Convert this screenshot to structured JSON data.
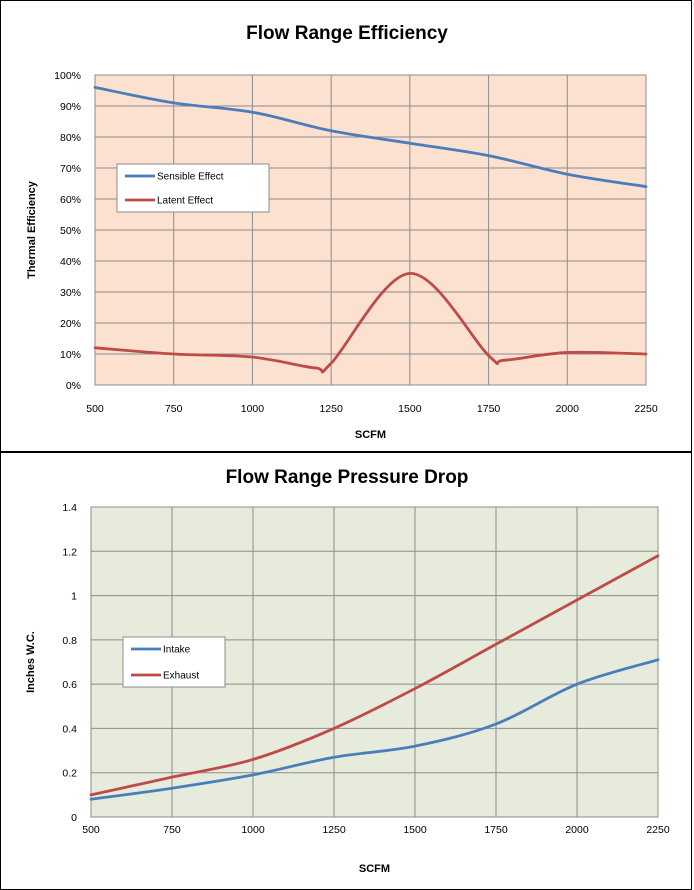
{
  "chart_data": [
    {
      "type": "line",
      "title": "Flow Range Efficiency",
      "xlabel": "SCFM",
      "ylabel": "Thermal Efficiency",
      "x_ticks": [
        "500",
        "750",
        "1000",
        "1250",
        "1500",
        "1750",
        "2000",
        "2250"
      ],
      "y_ticks": [
        "0%",
        "10%",
        "20%",
        "30%",
        "40%",
        "50%",
        "60%",
        "70%",
        "80%",
        "90%",
        "100%"
      ],
      "xlim": [
        500,
        2250
      ],
      "ylim": [
        0,
        100
      ],
      "grid": true,
      "legend_position": "center-left",
      "plot_bg": "#fce1d0",
      "series": [
        {
          "name": "Sensible Effect",
          "color": "#4a7ebb",
          "x": [
            500,
            750,
            1000,
            1250,
            1500,
            1750,
            2000,
            2250
          ],
          "y": [
            96,
            91,
            88,
            82,
            78,
            74,
            68,
            64
          ]
        },
        {
          "name": "Latent Effect",
          "color": "#be4b48",
          "x": [
            500,
            750,
            1000,
            1200,
            1250,
            1500,
            1750,
            1800,
            2000,
            2250
          ],
          "y": [
            12,
            10,
            9,
            5.5,
            7,
            36,
            9.5,
            8,
            10.5,
            10
          ]
        }
      ]
    },
    {
      "type": "line",
      "title": "Flow Range Pressure Drop",
      "xlabel": "SCFM",
      "ylabel": "Inches W.C.",
      "x_ticks": [
        "500",
        "750",
        "1000",
        "1250",
        "1500",
        "1750",
        "2000",
        "2250"
      ],
      "y_ticks": [
        "0",
        "0.2",
        "0.4",
        "0.6",
        "0.8",
        "1",
        "1.2",
        "1.4"
      ],
      "xlim": [
        500,
        2250
      ],
      "ylim": [
        0,
        1.4
      ],
      "grid": true,
      "legend_position": "center-left",
      "plot_bg": "#e6ebdb",
      "series": [
        {
          "name": "Intake",
          "color": "#4a7ebb",
          "x": [
            500,
            750,
            1000,
            1250,
            1500,
            1750,
            2000,
            2250
          ],
          "y": [
            0.08,
            0.13,
            0.19,
            0.27,
            0.32,
            0.42,
            0.6,
            0.71
          ]
        },
        {
          "name": "Exhaust",
          "color": "#be4b48",
          "x": [
            500,
            750,
            1000,
            1250,
            1500,
            1750,
            2000,
            2250
          ],
          "y": [
            0.1,
            0.18,
            0.26,
            0.4,
            0.58,
            0.78,
            0.98,
            1.18
          ]
        }
      ]
    }
  ]
}
